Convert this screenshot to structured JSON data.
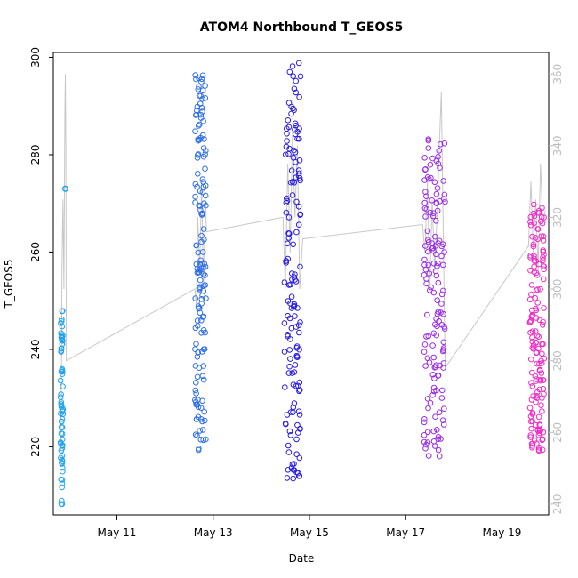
{
  "chart_data": {
    "type": "scatter",
    "title": "ATOM4 Northbound T_GEOS5",
    "xlabel": "Date",
    "ylabel": "T_GEOS5",
    "xlim": [
      9.68,
      19.97
    ],
    "ylim": [
      206,
      301
    ],
    "x_ticks": [
      {
        "value": 11,
        "label": "May 11"
      },
      {
        "value": 13,
        "label": "May 13"
      },
      {
        "value": 15,
        "label": "May 15"
      },
      {
        "value": 17,
        "label": "May 17"
      },
      {
        "value": 19,
        "label": "May 19"
      }
    ],
    "y_ticks": [
      220,
      240,
      260,
      280,
      300
    ],
    "y2_ticks": [
      240,
      260,
      280,
      300,
      320,
      340,
      360
    ],
    "y2lim": [
      237,
      366
    ],
    "grid": false,
    "legend": "none",
    "colors": {
      "line": "#c8c8c8",
      "right_axis": "#bdbdbd",
      "flight1": "#1fa3ef",
      "flight2": "#2f6fe5",
      "flight3": "#2a1ee0",
      "flight4": "#9a2de6",
      "flight5": "#ee2cc6"
    },
    "clusters": [
      {
        "name": "",
        "x_start": 9.83,
        "x_end": 9.88,
        "y_min": 208,
        "y_max": 248,
        "color": "#1fa3ef"
      },
      {
        "name": "",
        "x_start": 12.62,
        "x_end": 12.85,
        "y_min": 219,
        "y_max": 297,
        "color": "#2f6fe5"
      },
      {
        "name": "",
        "x_start": 14.48,
        "x_end": 14.82,
        "y_min": 213,
        "y_max": 299,
        "color": "#2a1ee0"
      },
      {
        "name": "",
        "x_start": 17.38,
        "x_end": 17.82,
        "y_min": 218,
        "y_max": 285,
        "color": "#9a2de6"
      },
      {
        "name": "",
        "x_start": 19.58,
        "x_end": 19.88,
        "y_min": 219,
        "y_max": 270,
        "color": "#ee2cc6"
      }
    ],
    "outliers": [
      {
        "x": 9.93,
        "y": 273,
        "color": "#1fa3ef"
      }
    ],
    "secondary_line": [
      [
        9.84,
        255
      ],
      [
        9.86,
        305
      ],
      [
        9.88,
        325
      ],
      [
        9.9,
        300
      ],
      [
        9.92,
        350
      ],
      [
        9.93,
        360
      ],
      [
        9.94,
        340
      ],
      [
        9.95,
        280
      ],
      [
        12.62,
        300
      ],
      [
        12.65,
        295
      ],
      [
        12.68,
        320
      ],
      [
        12.72,
        305
      ],
      [
        12.76,
        330
      ],
      [
        12.8,
        300
      ],
      [
        12.84,
        325
      ],
      [
        12.86,
        316
      ],
      [
        14.45,
        320
      ],
      [
        14.5,
        300
      ],
      [
        14.55,
        335
      ],
      [
        14.6,
        310
      ],
      [
        14.65,
        345
      ],
      [
        14.7,
        320
      ],
      [
        14.75,
        340
      ],
      [
        14.8,
        300
      ],
      [
        14.86,
        314
      ],
      [
        17.35,
        318
      ],
      [
        17.4,
        310
      ],
      [
        17.45,
        330
      ],
      [
        17.5,
        300
      ],
      [
        17.55,
        325
      ],
      [
        17.6,
        305
      ],
      [
        17.65,
        320
      ],
      [
        17.7,
        340
      ],
      [
        17.74,
        355
      ],
      [
        17.78,
        315
      ],
      [
        17.82,
        278
      ],
      [
        19.55,
        312
      ],
      [
        19.6,
        330
      ],
      [
        19.65,
        310
      ],
      [
        19.7,
        325
      ],
      [
        19.75,
        305
      ],
      [
        19.8,
        335
      ],
      [
        19.85,
        318
      ],
      [
        19.9,
        322
      ]
    ]
  }
}
